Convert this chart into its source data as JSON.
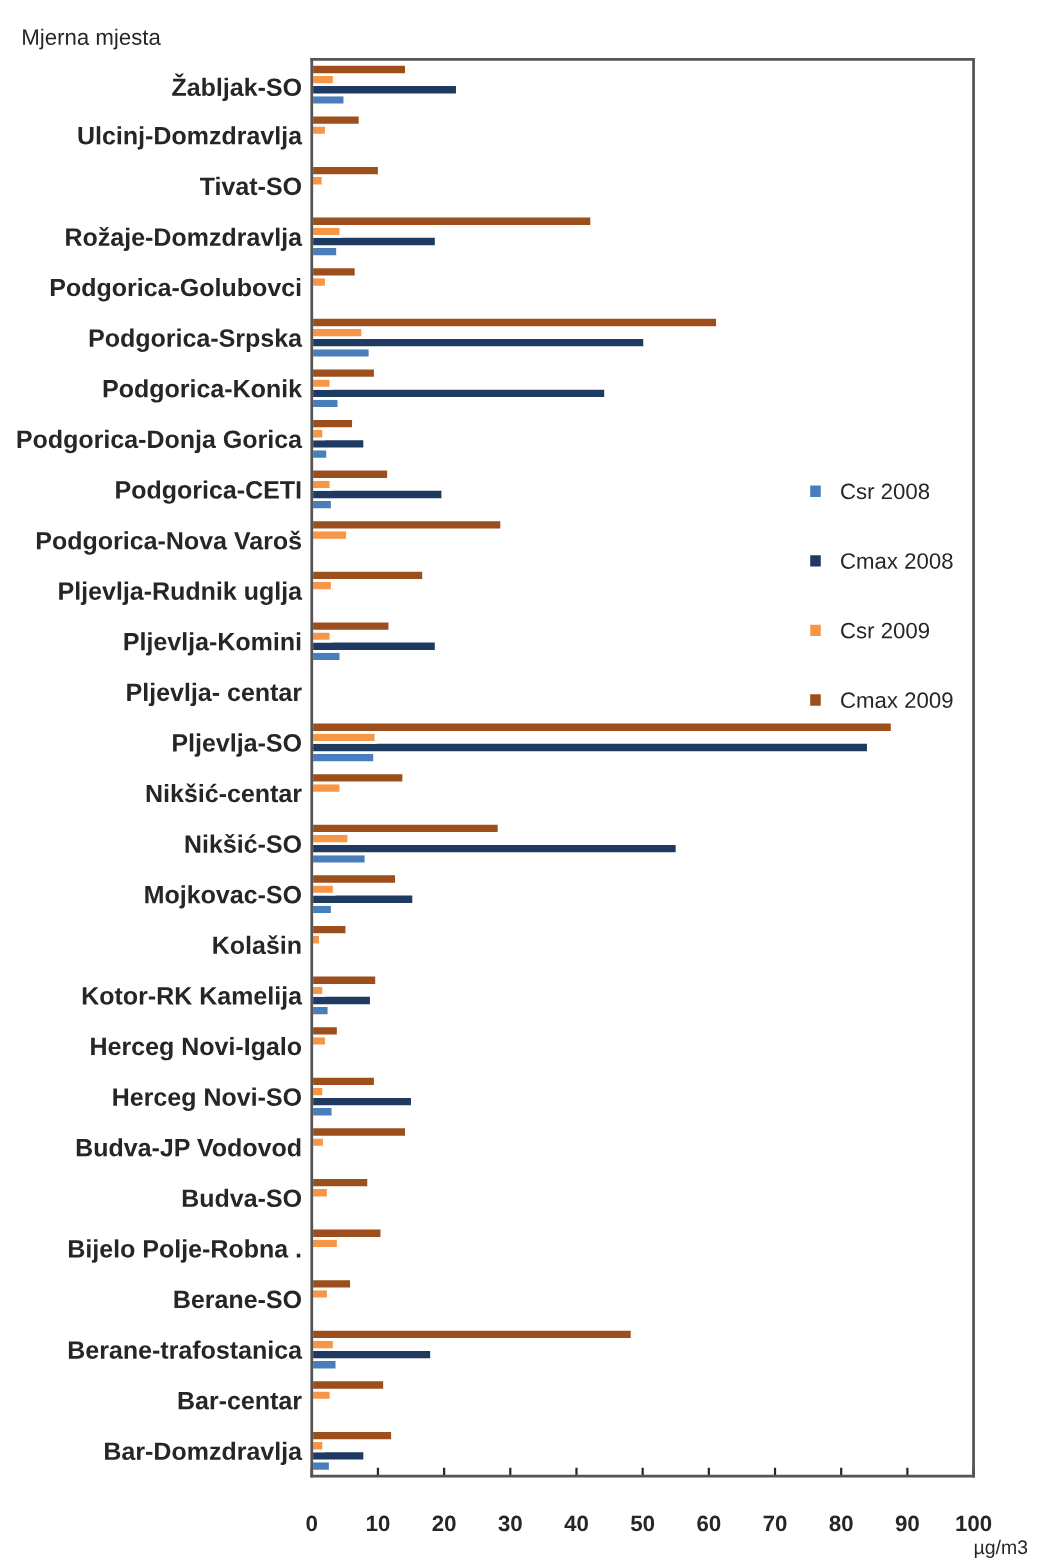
{
  "chart_data": {
    "type": "bar",
    "orientation": "horizontal",
    "ylabel": "Mjerna mjesta",
    "xlabel": "µg/m3",
    "categories": [
      "Žabljak-SO",
      "Ulcinj-Domzdravlja",
      "Tivat-SO",
      "Rožaje-Domzdravlja",
      "Podgorica-Golubovci",
      "Podgorica-Srpska",
      "Podgorica-Konik",
      "Podgorica-Donja Gorica",
      "Podgorica-CETI",
      "Podgorica-Nova Varoš",
      "Pljevlja-Rudnik uglja",
      "Pljevlja-Komini",
      "Pljevlja- centar",
      "Pljevlja-SO",
      "Nikšić-centar",
      "Nikšić-SO",
      "Mojkovac-SO",
      "Kolašin",
      "Kotor-RK Kamelija",
      "Herceg Novi-Igalo",
      "Herceg Novi-SO",
      "Budva-JP Vodovod",
      "Budva-SO",
      "Bijelo Polje-Robna .",
      "Berane-SO",
      "Berane-trafostanica",
      "Bar-centar",
      "Bar-Domzdravlja"
    ],
    "series": [
      {
        "name": "Csr 2008",
        "color": "#4a7ebb",
        "values": [
          5,
          null,
          null,
          3.9,
          null,
          8.8,
          4.1,
          2.4,
          3.1,
          null,
          null,
          4.4,
          null,
          9.5,
          null,
          8.2,
          3.1,
          null,
          2.6,
          null,
          3.2,
          null,
          null,
          null,
          null,
          3.8,
          null,
          2.8
        ]
      },
      {
        "name": "Cmax 2008",
        "color": "#1f3a60",
        "values": [
          22,
          null,
          null,
          18.8,
          null,
          50.3,
          44.4,
          8,
          19.8,
          null,
          null,
          18.8,
          null,
          84.1,
          null,
          55.2,
          15.4,
          null,
          9,
          null,
          15.2,
          null,
          null,
          null,
          null,
          18.1,
          null,
          8
        ]
      },
      {
        "name": "Csr 2009",
        "color": "#f79646",
        "values": [
          3.4,
          2.2,
          1.7,
          4.4,
          2.2,
          7.7,
          2.9,
          1.8,
          2.9,
          5.4,
          3.1,
          2.9,
          null,
          9.7,
          4.4,
          5.6,
          3.4,
          1.3,
          1.8,
          2.2,
          1.8,
          1.9,
          2.5,
          4,
          2.5,
          3.4,
          2.9,
          1.8
        ]
      },
      {
        "name": "Cmax 2009",
        "color": "#9c4f1c",
        "values": [
          14.3,
          7.3,
          10.2,
          42.3,
          6.7,
          61.3,
          9.6,
          6.3,
          11.6,
          28.7,
          16.9,
          11.8,
          null,
          87.7,
          13.9,
          28.3,
          12.8,
          5.3,
          9.8,
          4,
          9.6,
          14.3,
          8.6,
          10.6,
          6,
          48.4,
          11,
          12.2
        ]
      }
    ],
    "xlim": [
      0,
      100
    ],
    "xticks": [
      0,
      10,
      20,
      30,
      40,
      50,
      60,
      70,
      80,
      90,
      100
    ],
    "grid": false,
    "legend": "right"
  }
}
